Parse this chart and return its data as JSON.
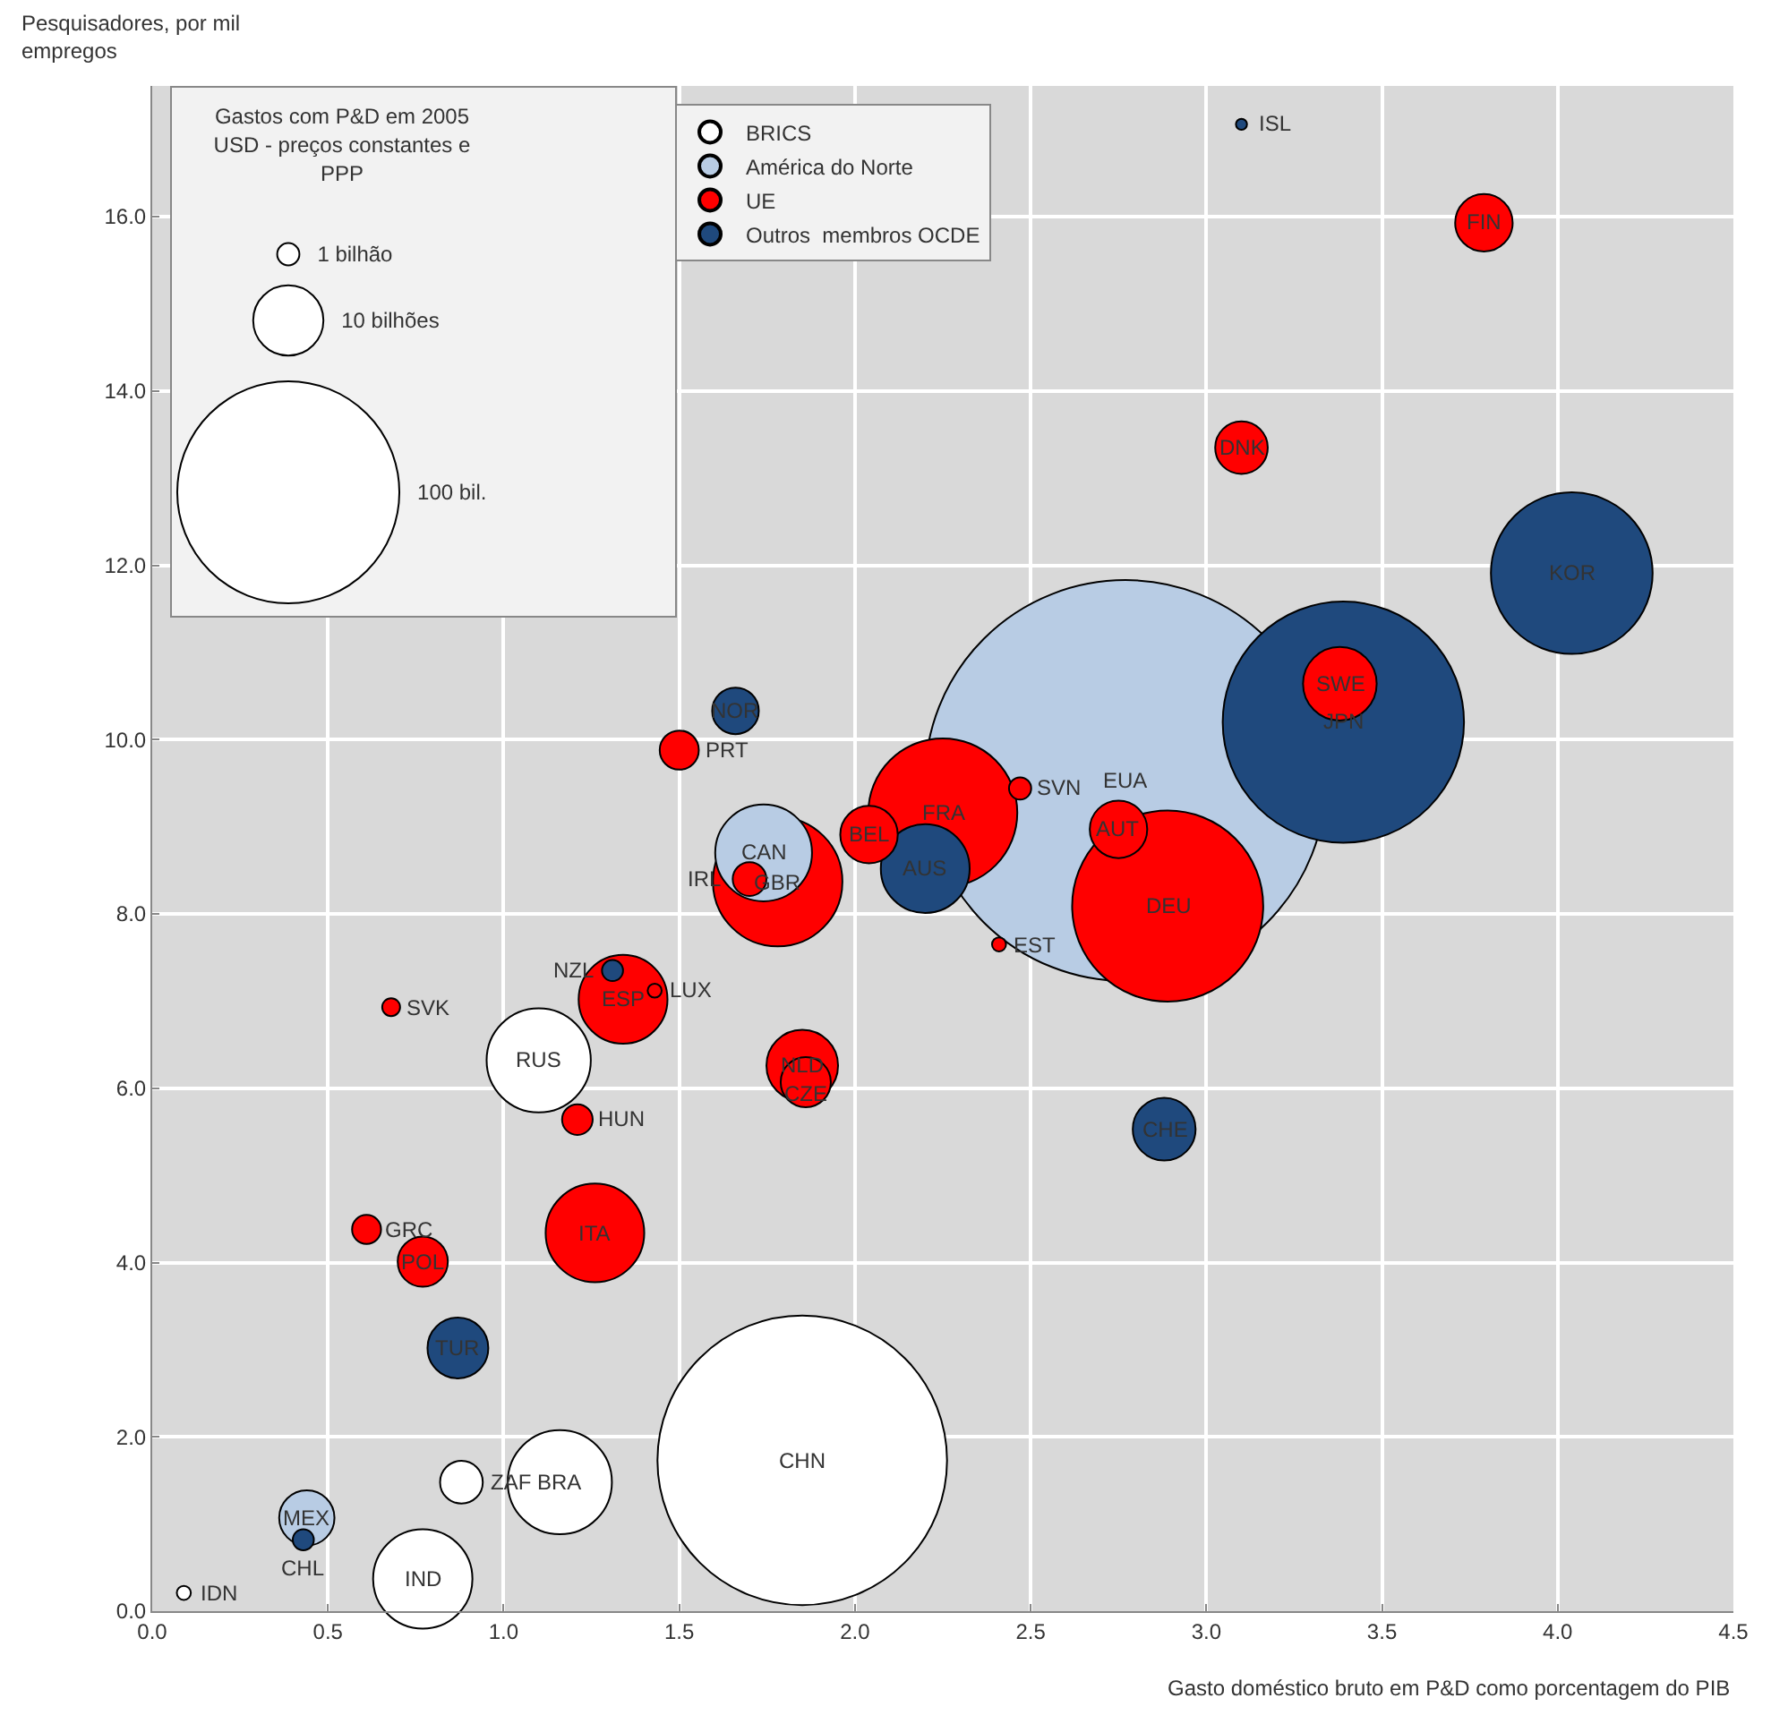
{
  "chart_data": {
    "type": "bubble",
    "xlabel": "Gasto doméstico bruto em P&D como porcentagem do PIB",
    "ylabel": "Pesquisadores, por mil\nempregos",
    "xlim": [
      0,
      4.5
    ],
    "ylim": [
      0,
      17.5
    ],
    "xticks": [
      {
        "value": 0,
        "label": "0.0"
      },
      {
        "value": 0.5,
        "label": "0.5"
      },
      {
        "value": 1,
        "label": "1.0"
      },
      {
        "value": 1.5,
        "label": "1.5"
      },
      {
        "value": 2,
        "label": "2.0"
      },
      {
        "value": 2.5,
        "label": "2.5"
      },
      {
        "value": 3,
        "label": "3.0"
      },
      {
        "value": 3.5,
        "label": "3.5"
      },
      {
        "value": 4,
        "label": "4.0"
      },
      {
        "value": 4.5,
        "label": "4.5"
      }
    ],
    "yticks": [
      {
        "value": 0,
        "label": "0.0"
      },
      {
        "value": 2,
        "label": "2.0"
      },
      {
        "value": 4,
        "label": "4.0"
      },
      {
        "value": 6,
        "label": "6.0"
      },
      {
        "value": 8,
        "label": "8.0"
      },
      {
        "value": 10,
        "label": "10.0"
      },
      {
        "value": 12,
        "label": "12.0"
      },
      {
        "value": 14,
        "label": "14.0"
      },
      {
        "value": 16,
        "label": "16.0"
      }
    ],
    "grid": true,
    "legend": "top",
    "size_legend": [
      {
        "value": 1,
        "label": "1 bilhão"
      },
      {
        "value": 10,
        "label": "10 bilhões"
      },
      {
        "value": 100,
        "label": "100 bil."
      }
    ],
    "series": [
      {
        "name": "BRICS",
        "color": "#ffffff",
        "x": [
          1.85,
          0.77,
          1.16,
          1.1,
          0.88,
          0.09
        ],
        "values": [
          1.73,
          0.37,
          1.48,
          6.32,
          1.48,
          0.21
        ],
        "sizes": [
          170,
          20,
          22,
          22,
          3.7,
          0.4
        ]
      },
      {
        "name": "América do Norte",
        "color": "#b8cce4",
        "x": [
          2.77,
          1.74,
          0.44
        ],
        "values": [
          9.53,
          8.7,
          1.07
        ],
        "sizes": [
          326,
          19,
          6.2
        ]
      },
      {
        "name": "UE",
        "color": "#ff0000",
        "x": [
          3.79,
          3.1,
          3.38,
          2.89,
          2.75,
          2.47,
          2.41,
          2.25,
          2.04,
          1.78,
          1.7,
          1.5,
          1.43,
          1.34,
          0.68,
          1.21,
          1.85,
          1.86,
          0.61,
          0.77,
          1.26
        ],
        "values": [
          15.93,
          13.35,
          10.64,
          8.09,
          8.97,
          9.44,
          7.65,
          9.16,
          8.91,
          8.37,
          8.4,
          9.88,
          7.12,
          7.02,
          6.93,
          5.64,
          6.26,
          6.07,
          4.38,
          4.01,
          4.34
        ],
        "sizes": [
          6.7,
          5.6,
          11,
          74,
          6.7,
          1,
          0.4,
          45,
          6.7,
          34,
          2.3,
          3.1,
          0.4,
          16,
          0.65,
          1.9,
          10.4,
          5.1,
          1.7,
          5.1,
          19.7
        ]
      },
      {
        "name": "Outros  membros OCDE",
        "color": "#1f497d",
        "x": [
          3.1,
          4.04,
          3.39,
          2.88,
          2.2,
          1.66,
          1.31,
          0.87,
          0.43
        ],
        "values": [
          17.06,
          11.91,
          10.2,
          5.53,
          8.52,
          10.33,
          7.35,
          3.02,
          0.82
        ],
        "sizes": [
          0.25,
          53,
          118,
          8,
          16,
          4.4,
          0.9,
          7.5,
          0.9
        ]
      }
    ],
    "annotations": [
      "Gastos com P&D em 2005\nUSD - preços constantes e\nPPP",
      {
        "text": "CHN",
        "x": 1.85,
        "y": 1.73
      },
      {
        "text": "IND",
        "x": 0.77,
        "y": 0.37
      },
      {
        "text": "BRA",
        "x": 1.16,
        "y": 1.48
      },
      {
        "text": "RUS",
        "x": 1.1,
        "y": 6.32
      },
      {
        "text": "ZAF",
        "x": 0.88,
        "y": 1.48
      },
      {
        "text": "IDN",
        "x": 0.09,
        "y": 0.21
      },
      {
        "text": "EUA",
        "x": 2.77,
        "y": 9.53
      },
      {
        "text": "CAN",
        "x": 1.74,
        "y": 8.7
      },
      {
        "text": "MEX",
        "x": 0.44,
        "y": 1.07
      },
      {
        "text": "FIN",
        "x": 3.79,
        "y": 15.93
      },
      {
        "text": "DNK",
        "x": 3.1,
        "y": 13.35
      },
      {
        "text": "SWE",
        "x": 3.38,
        "y": 10.64
      },
      {
        "text": "DEU",
        "x": 2.89,
        "y": 8.09
      },
      {
        "text": "AUT",
        "x": 2.75,
        "y": 8.97
      },
      {
        "text": "SVN",
        "x": 2.47,
        "y": 9.44
      },
      {
        "text": "EST",
        "x": 2.41,
        "y": 7.65
      },
      {
        "text": "FRA",
        "x": 2.25,
        "y": 9.16
      },
      {
        "text": "BEL",
        "x": 2.04,
        "y": 8.91
      },
      {
        "text": "GBR",
        "x": 1.78,
        "y": 8.37
      },
      {
        "text": "IRL",
        "x": 1.7,
        "y": 8.4
      },
      {
        "text": "PRT",
        "x": 1.5,
        "y": 9.88
      },
      {
        "text": "LUX",
        "x": 1.43,
        "y": 7.12
      },
      {
        "text": "ESP",
        "x": 1.34,
        "y": 7.02
      },
      {
        "text": "SVK",
        "x": 0.68,
        "y": 6.93
      },
      {
        "text": "HUN",
        "x": 1.21,
        "y": 5.64
      },
      {
        "text": "NLD",
        "x": 1.85,
        "y": 6.26
      },
      {
        "text": "CZE",
        "x": 1.86,
        "y": 6.07
      },
      {
        "text": "GRC",
        "x": 0.61,
        "y": 4.38
      },
      {
        "text": "POL",
        "x": 0.77,
        "y": 4.01
      },
      {
        "text": "ITA",
        "x": 1.26,
        "y": 4.34
      },
      {
        "text": "ISL",
        "x": 3.1,
        "y": 17.06
      },
      {
        "text": "KOR",
        "x": 4.04,
        "y": 11.91
      },
      {
        "text": "JPN",
        "x": 3.39,
        "y": 10.2
      },
      {
        "text": "CHE",
        "x": 2.88,
        "y": 5.53
      },
      {
        "text": "AUS",
        "x": 2.2,
        "y": 8.52
      },
      {
        "text": "NOR",
        "x": 1.66,
        "y": 10.33
      },
      {
        "text": "NZL",
        "x": 1.31,
        "y": 7.35
      },
      {
        "text": "TUR",
        "x": 0.87,
        "y": 3.02
      },
      {
        "text": "CHL",
        "x": 0.43,
        "y": 0.82
      }
    ]
  }
}
